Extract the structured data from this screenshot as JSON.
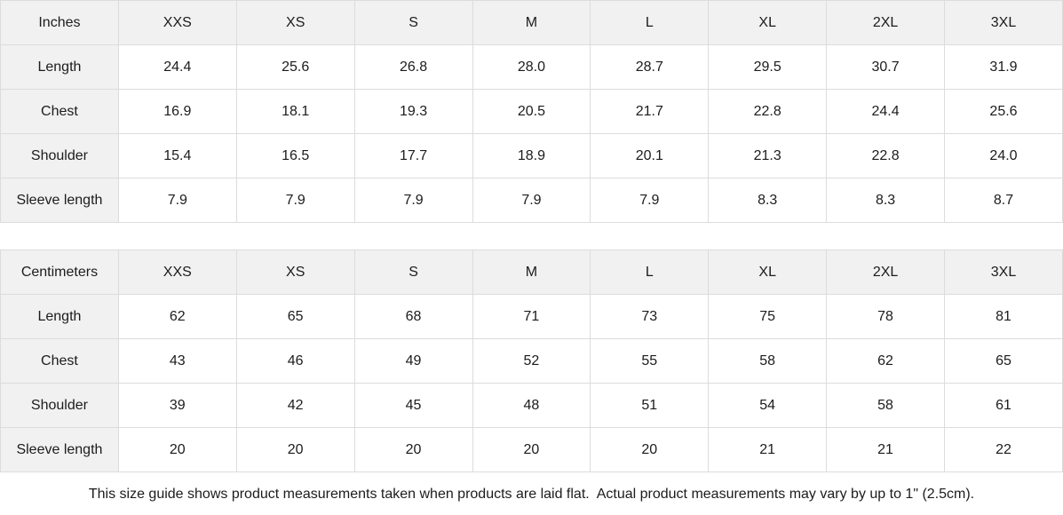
{
  "inches_table": {
    "unit_label": "Inches",
    "sizes": [
      "XXS",
      "XS",
      "S",
      "M",
      "L",
      "XL",
      "2XL",
      "3XL"
    ],
    "rows": [
      {
        "label": "Length",
        "values": [
          "24.4",
          "25.6",
          "26.8",
          "28.0",
          "28.7",
          "29.5",
          "30.7",
          "31.9"
        ]
      },
      {
        "label": "Chest",
        "values": [
          "16.9",
          "18.1",
          "19.3",
          "20.5",
          "21.7",
          "22.8",
          "24.4",
          "25.6"
        ]
      },
      {
        "label": "Shoulder",
        "values": [
          "15.4",
          "16.5",
          "17.7",
          "18.9",
          "20.1",
          "21.3",
          "22.8",
          "24.0"
        ]
      },
      {
        "label": "Sleeve length",
        "values": [
          "7.9",
          "7.9",
          "7.9",
          "7.9",
          "7.9",
          "8.3",
          "8.3",
          "8.7"
        ]
      }
    ]
  },
  "centimeters_table": {
    "unit_label": "Centimeters",
    "sizes": [
      "XXS",
      "XS",
      "S",
      "M",
      "L",
      "XL",
      "2XL",
      "3XL"
    ],
    "rows": [
      {
        "label": "Length",
        "values": [
          "62",
          "65",
          "68",
          "71",
          "73",
          "75",
          "78",
          "81"
        ]
      },
      {
        "label": "Chest",
        "values": [
          "43",
          "46",
          "49",
          "52",
          "55",
          "58",
          "62",
          "65"
        ]
      },
      {
        "label": "Shoulder",
        "values": [
          "39",
          "42",
          "45",
          "48",
          "51",
          "54",
          "58",
          "61"
        ]
      },
      {
        "label": "Sleeve length",
        "values": [
          "20",
          "20",
          "20",
          "20",
          "20",
          "21",
          "21",
          "22"
        ]
      }
    ]
  },
  "footer": {
    "note": "This size guide shows product measurements taken when products are laid flat.  Actual product measurements may vary by up to 1\" (2.5cm)."
  },
  "colors": {
    "header_bg": "#f1f1f1",
    "border": "#dcdcdc",
    "text": "#1c1c1c",
    "cell_bg": "#ffffff"
  }
}
